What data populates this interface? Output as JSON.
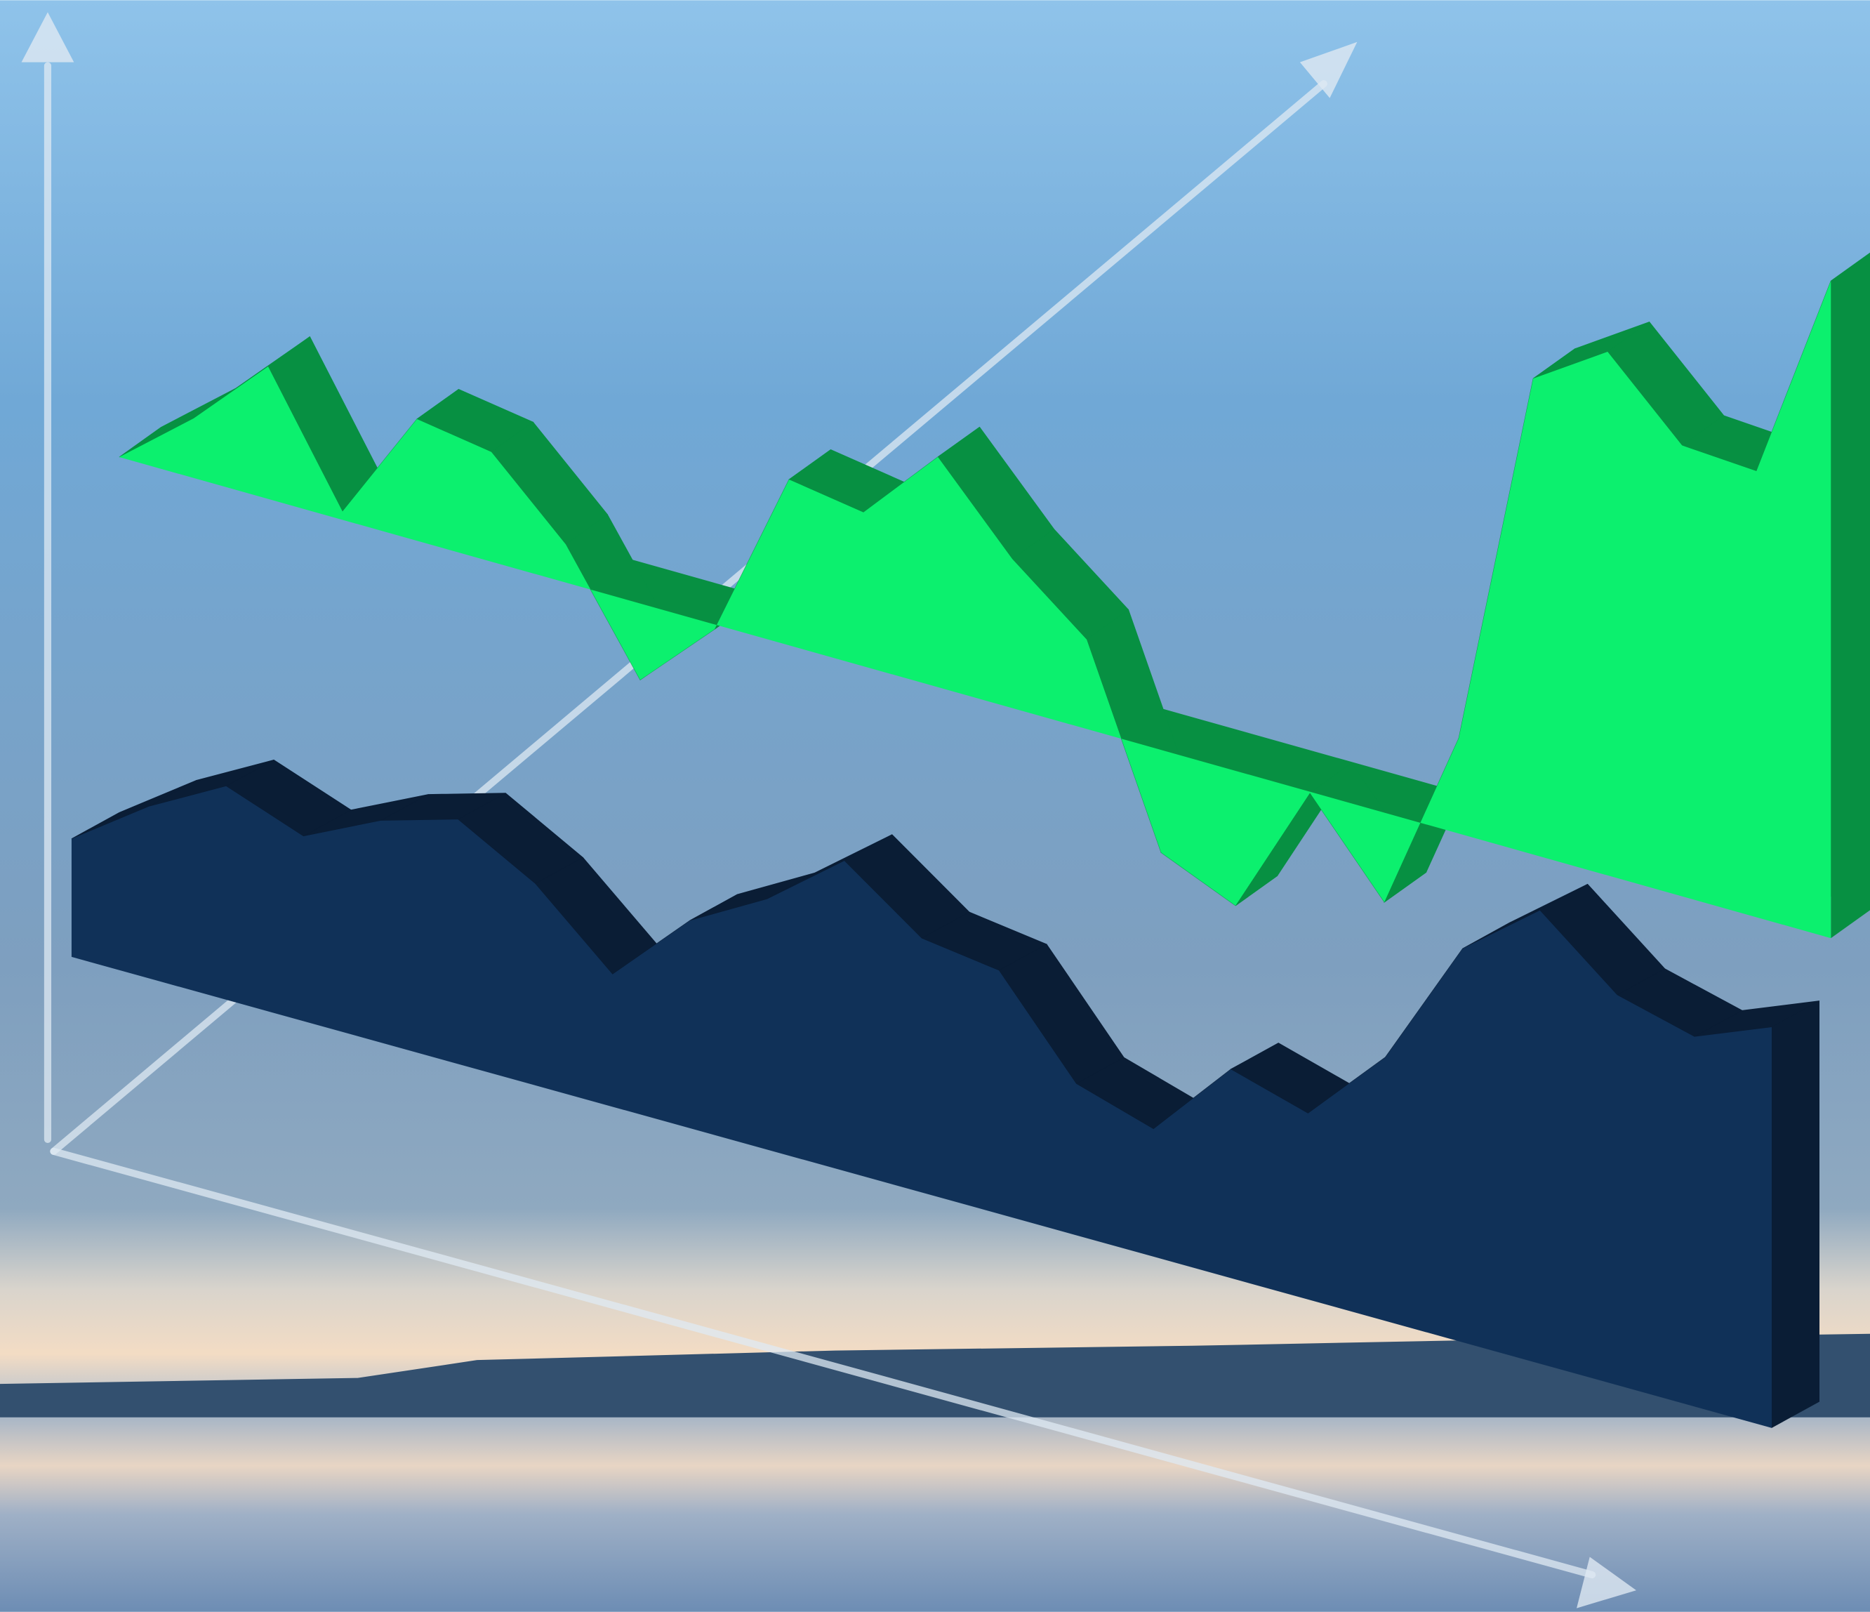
{
  "chart_data": {
    "type": "area3d",
    "series": [
      {
        "color": "#0cf06e",
        "values": [
          0,
          50,
          111,
          7,
          102,
          92,
          32,
          -64,
          -4,
          139,
          129,
          193,
          125,
          75,
          -86,
          -113,
          -1,
          -75,
          80,
          399,
          439,
          378,
          374,
          551
        ]
      },
      {
        "color": "#103158",
        "values": [
          99,
          144,
          179,
          155,
          186,
          205,
          169,
          111,
          174,
          210,
          260,
          213,
          204,
          127,
          107,
          175,
          156,
          221,
          330,
          380,
          327,
          310,
          336
        ]
      }
    ]
  }
}
